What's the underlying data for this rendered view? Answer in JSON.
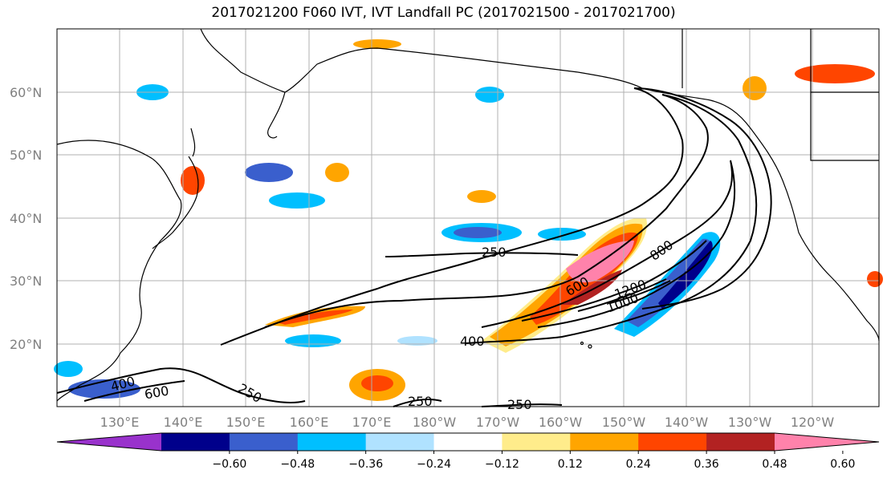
{
  "title": "2017021200 F060 IVT, IVT Landfall PC (2017021500 - 2017021700)",
  "lat_labels": [
    "60°N",
    "50°N",
    "40°N",
    "30°N",
    "20°N"
  ],
  "lon_labels": [
    "130°E",
    "140°E",
    "150°E",
    "160°E",
    "170°E",
    "180°W",
    "170°W",
    "160°W",
    "150°W",
    "140°W",
    "130°W",
    "120°W"
  ],
  "contour_labels": [
    "250",
    "400",
    "600",
    "800",
    "1000",
    "1200",
    "400",
    "600",
    "250",
    "250",
    "250"
  ],
  "colorbar": {
    "colors": [
      "#9932cc",
      "#00008b",
      "#3a5fcd",
      "#00bfff",
      "#b0e2ff",
      "#ffffff",
      "#ffec8b",
      "#ffa500",
      "#ff4500",
      "#b22222",
      "#ff82ab"
    ],
    "tick_labels": [
      "−0.60",
      "−0.48",
      "−0.36",
      "−0.24",
      "−0.12",
      "0.12",
      "0.24",
      "0.36",
      "0.48",
      "0.60"
    ]
  }
}
